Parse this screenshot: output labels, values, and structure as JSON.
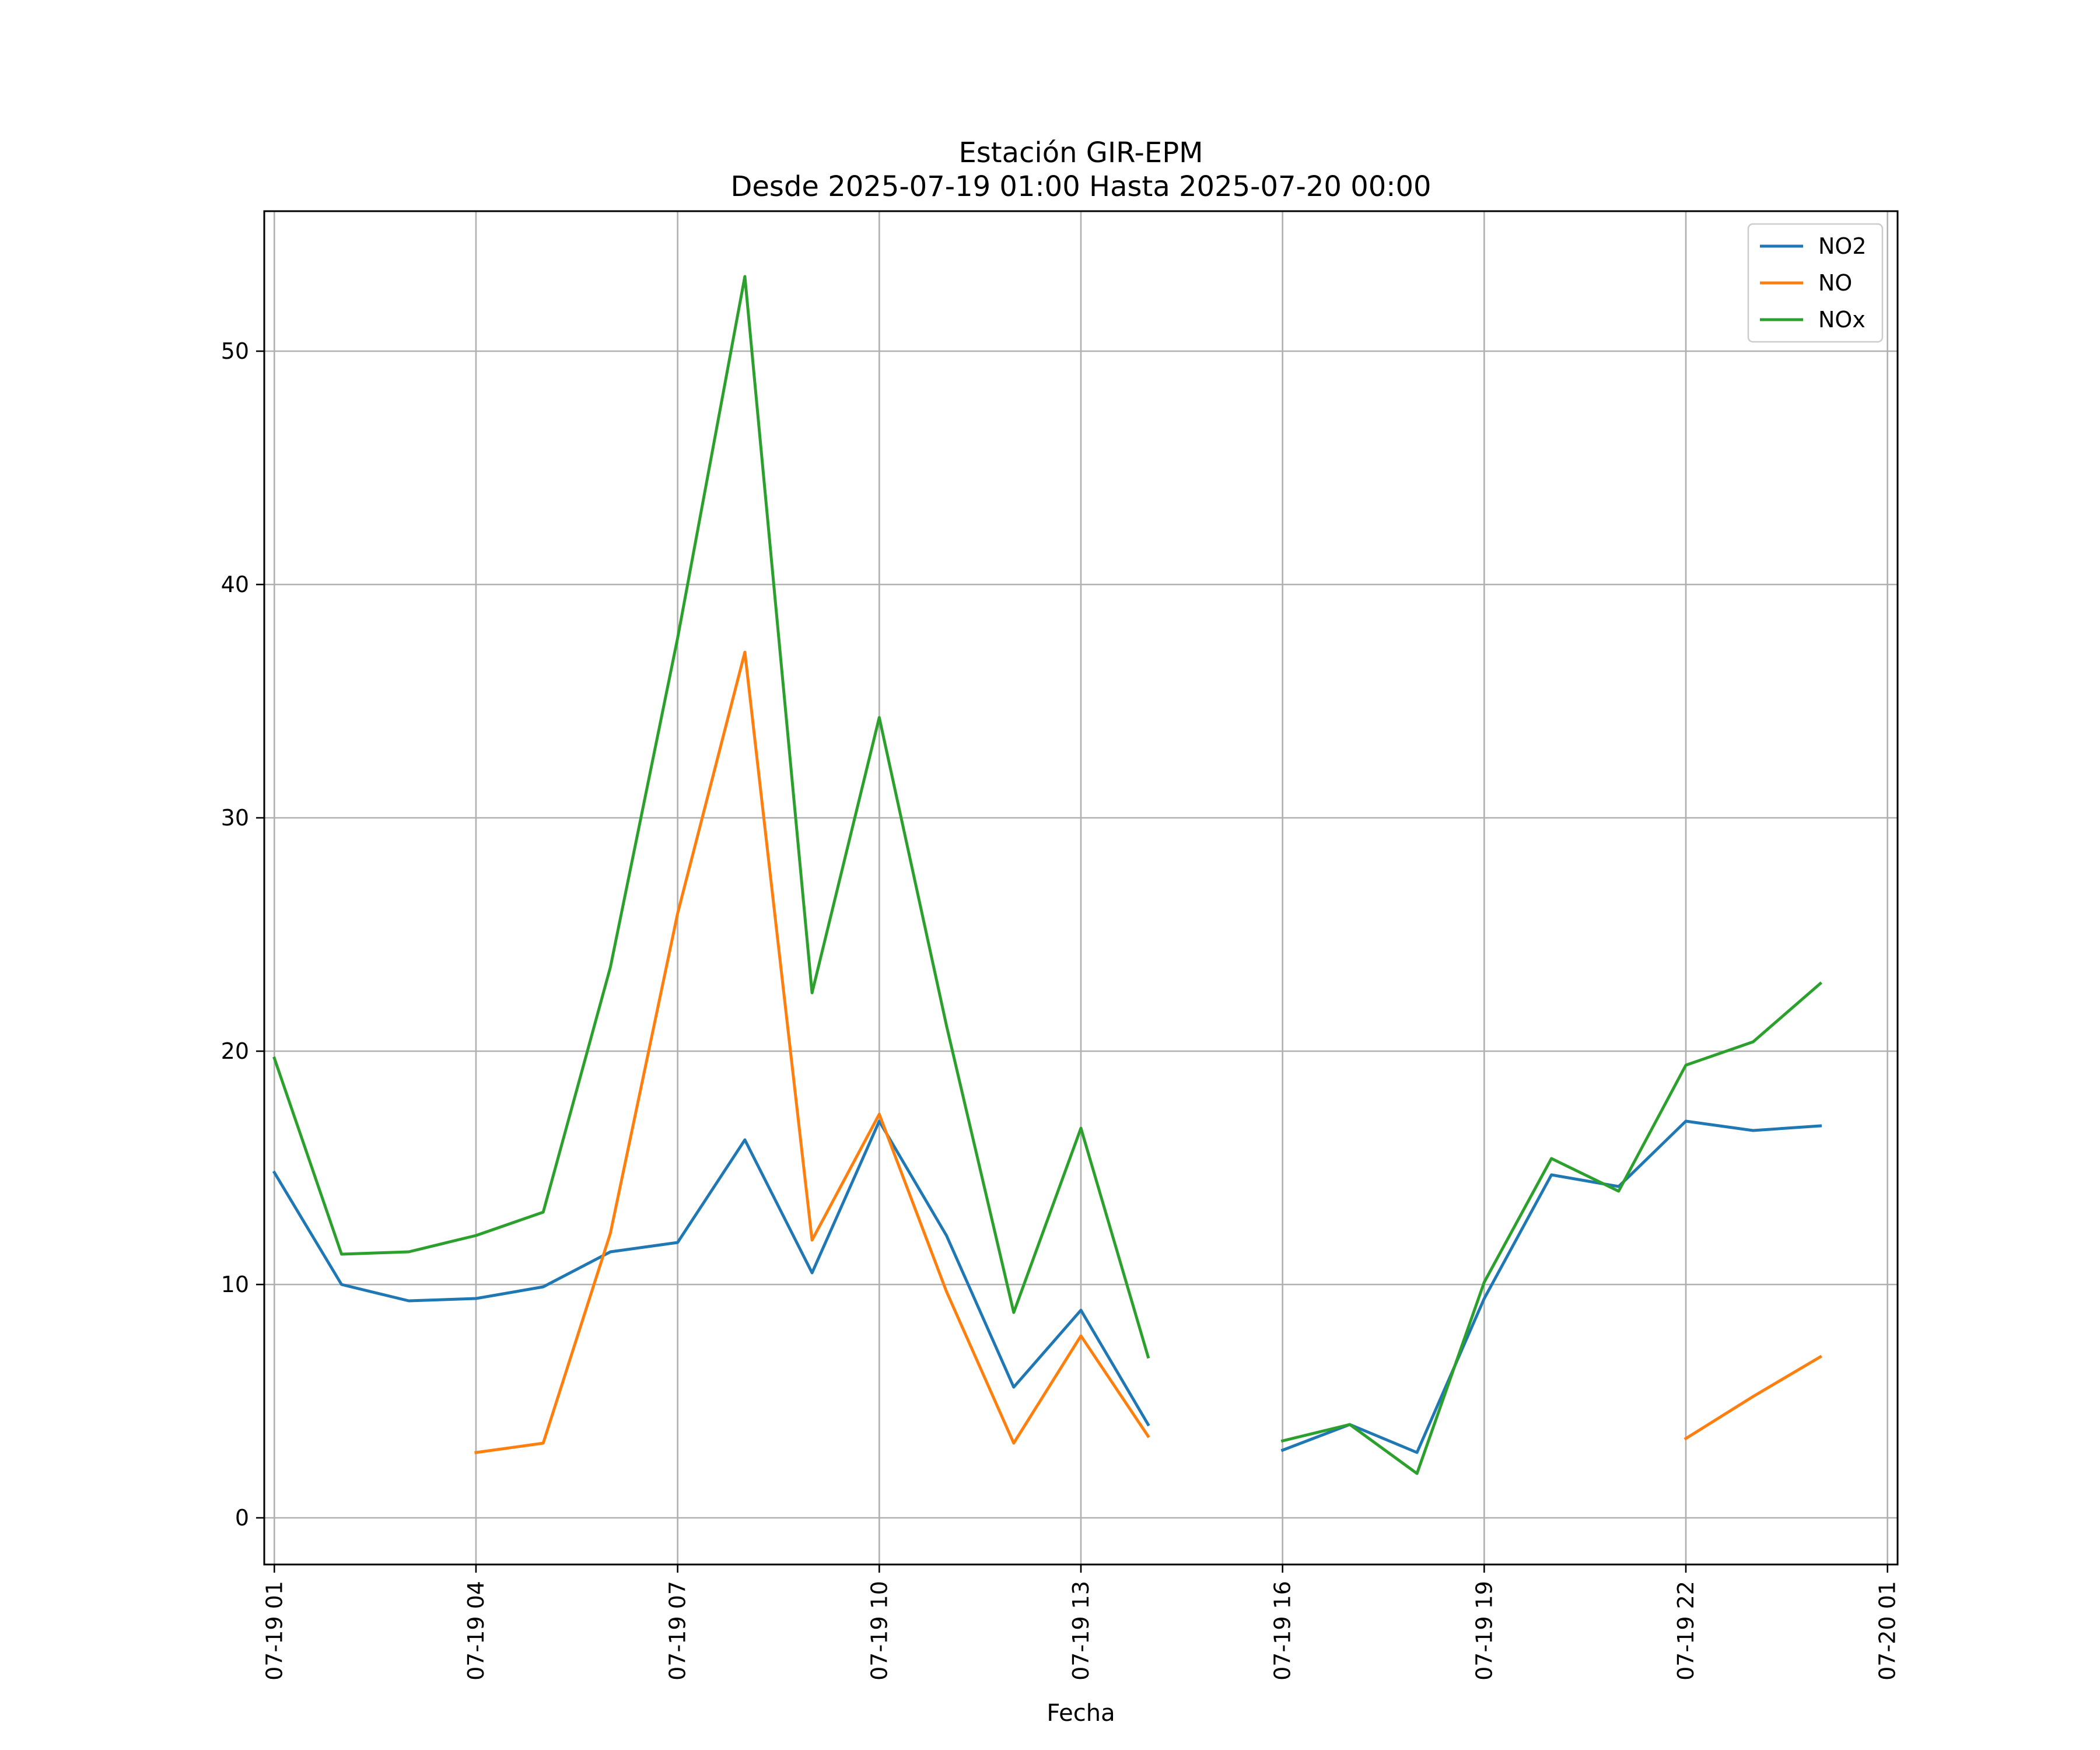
{
  "chart_data": {
    "type": "line",
    "title": "Estación GIR-EPM",
    "subtitle": "Desde 2025-07-19 01:00 Hasta 2025-07-20 00:00",
    "xlabel": "Fecha",
    "ylabel": "",
    "x": [
      "07-19 01",
      "07-19 02",
      "07-19 03",
      "07-19 04",
      "07-19 05",
      "07-19 06",
      "07-19 07",
      "07-19 08",
      "07-19 09",
      "07-19 10",
      "07-19 11",
      "07-19 12",
      "07-19 13",
      "07-19 14",
      "07-19 15",
      "07-19 16",
      "07-19 17",
      "07-19 18",
      "07-19 19",
      "07-19 20",
      "07-19 21",
      "07-19 22",
      "07-19 23",
      "07-20 00"
    ],
    "x_ticks": [
      "07-19 01",
      "07-19 04",
      "07-19 07",
      "07-19 10",
      "07-19 13",
      "07-19 16",
      "07-19 19",
      "07-19 22",
      "07-20 01"
    ],
    "xlim": [
      "07-19 00:51",
      "07-20 01:09"
    ],
    "y_ticks": [
      0,
      10,
      20,
      30,
      40,
      50
    ],
    "ylim": [
      -2,
      56
    ],
    "grid": true,
    "legend_position": "top-right",
    "series": [
      {
        "name": "NO2",
        "color": "#1f77b4",
        "values": [
          14.8,
          10.0,
          9.3,
          9.4,
          9.9,
          11.4,
          11.8,
          16.2,
          10.5,
          17.0,
          12.1,
          5.6,
          8.9,
          4.0,
          null,
          2.9,
          4.0,
          2.8,
          9.4,
          14.7,
          14.2,
          17.0,
          16.6,
          16.8
        ]
      },
      {
        "name": "NO",
        "color": "#ff7f0e",
        "values": [
          null,
          null,
          null,
          2.8,
          3.2,
          12.2,
          25.9,
          37.1,
          11.9,
          17.3,
          9.7,
          3.2,
          7.8,
          3.5,
          null,
          null,
          null,
          null,
          null,
          null,
          null,
          3.4,
          5.2,
          6.9
        ]
      },
      {
        "name": "NOx",
        "color": "#2ca02c",
        "values": [
          19.7,
          11.3,
          11.4,
          12.1,
          13.1,
          23.6,
          37.7,
          53.2,
          22.5,
          34.3,
          21.1,
          8.8,
          16.7,
          6.9,
          null,
          3.3,
          4.0,
          1.9,
          10.1,
          15.4,
          14.0,
          19.4,
          20.4,
          22.9
        ]
      }
    ]
  }
}
